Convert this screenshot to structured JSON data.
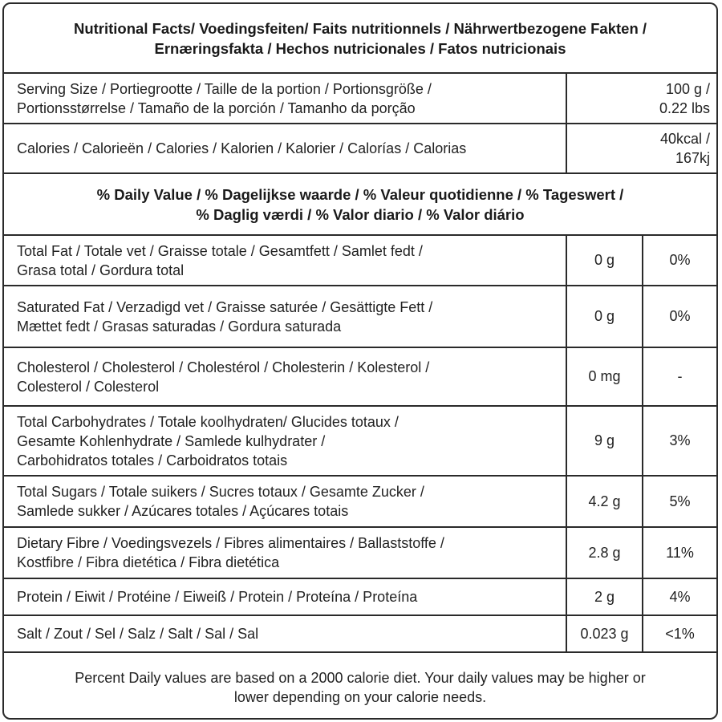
{
  "title": [
    "Nutritional Facts/ Voedingsfeiten/ Faits nutritionnels / Nährwertbezogene Fakten /",
    "Ernæringsfakta / Hechos nutricionales / Fatos nutricionais"
  ],
  "serving": {
    "label": [
      "Serving Size / Portiegrootte / Taille de la portion / Portionsgröße /",
      "Portionsstørrelse / Tamaño de la porción / Tamanho da porção"
    ],
    "value": [
      "100 g /",
      "0.22 lbs"
    ]
  },
  "calories": {
    "label": [
      "Calories / Calorieën / Calories / Kalorien / Kalorier / Calorías / Calorias"
    ],
    "value": [
      "40kcal /",
      "167kj"
    ]
  },
  "daily_value_header": [
    "% Daily Value / % Dagelijkse waarde / % Valeur quotidienne / % Tageswert /",
    "% Daglig værdi / % Valor diario / % Valor diário"
  ],
  "nutrients": [
    {
      "label": [
        "Total Fat / Totale vet / Graisse totale / Gesamtfett / Samlet fedt /",
        "Grasa total / Gordura total"
      ],
      "amount": "0 g",
      "percent": "0%"
    },
    {
      "label": [
        "Saturated Fat / Verzadigd vet / Graisse saturée / Gesättigte Fett /",
        "Mættet fedt / Grasas saturadas / Gordura saturada"
      ],
      "amount": "0 g",
      "percent": "0%"
    },
    {
      "label": [
        "Cholesterol / Cholesterol  / Cholestérol / Cholesterin /  Kolesterol /",
        "Colesterol / Colesterol"
      ],
      "amount": "0 mg",
      "percent": "-"
    },
    {
      "label": [
        "Total Carbohydrates / Totale koolhydraten/ Glucides totaux /",
        "Gesamte Kohlenhydrate / Samlede kulhydrater /",
        "Carbohidratos totales / Carboidratos totais"
      ],
      "amount": "9 g",
      "percent": "3%"
    },
    {
      "label": [
        "Total Sugars / Totale suikers / Sucres totaux / Gesamte Zucker /",
        "Samlede sukker / Azúcares totales / Açúcares totais"
      ],
      "amount": "4.2 g",
      "percent": "5%"
    },
    {
      "label": [
        "Dietary Fibre / Voedingsvezels / Fibres alimentaires / Ballaststoffe /",
        "Kostfibre / Fibra dietética / Fibra dietética"
      ],
      "amount": "2.8 g",
      "percent": "11%"
    },
    {
      "label": [
        "Protein / Eiwit / Protéine / Eiweiß / Protein / Proteína / Proteína"
      ],
      "amount": "2 g",
      "percent": "4%"
    },
    {
      "label": [
        "Salt / Zout / Sel / Salz / Salt / Sal / Sal"
      ],
      "amount": "0.023 g",
      "percent": "<1%"
    }
  ],
  "footer": [
    "Percent Daily values are based on a 2000 calorie diet. Your daily values may be higher or",
    "lower depending on your calorie needs."
  ]
}
